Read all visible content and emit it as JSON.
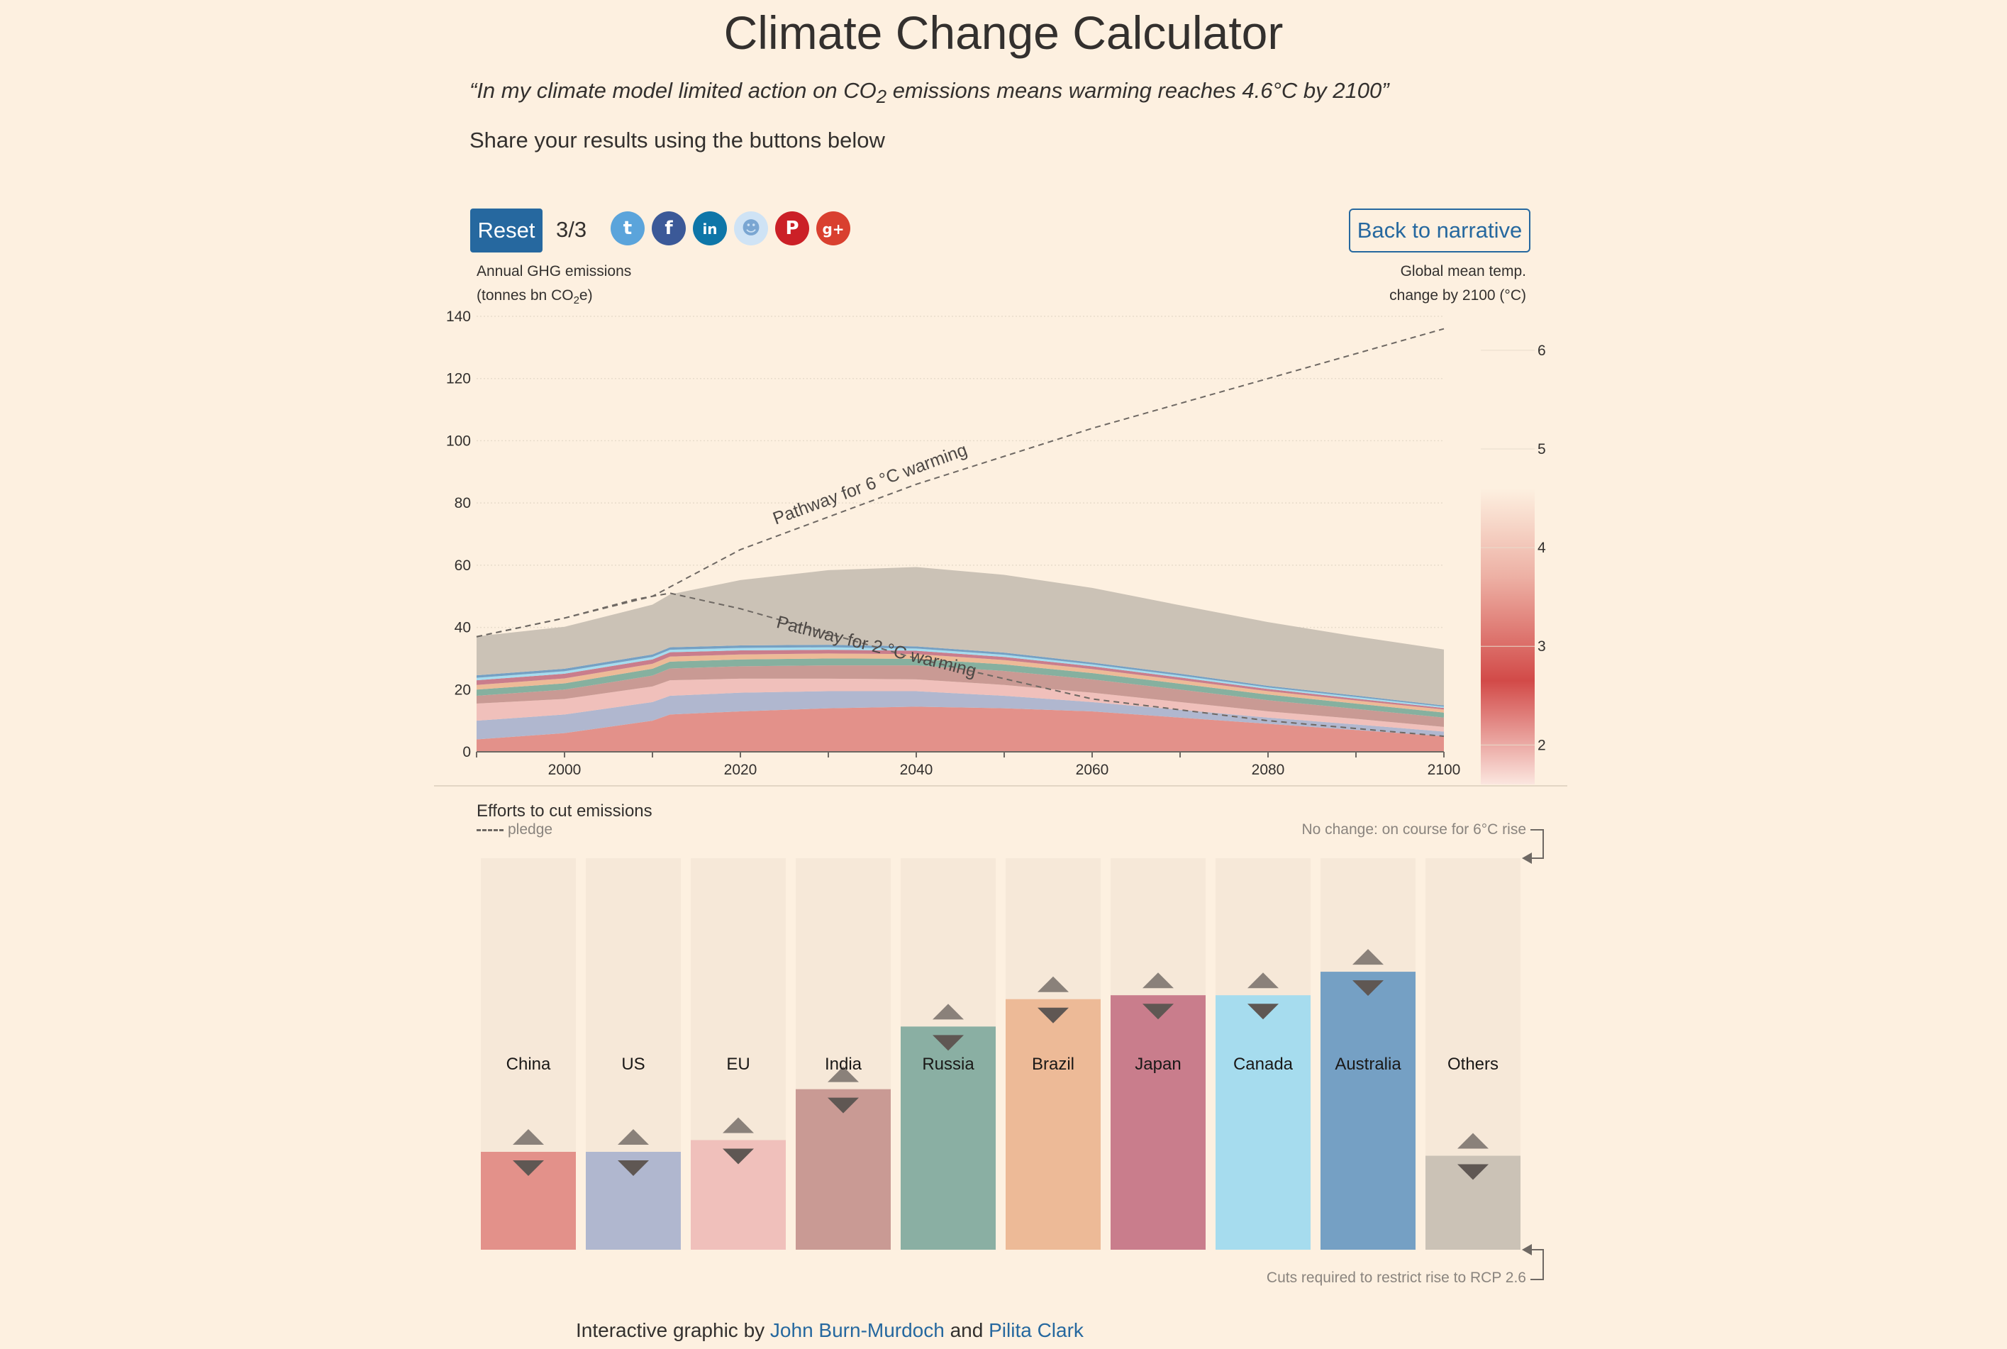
{
  "header": {
    "title": "Climate Change Calculator",
    "quote_pre": "“In my climate model limited action on CO",
    "quote_sub": "2",
    "quote_post": " emissions means warming reaches 4.6°C by 2100”",
    "share_text": "Share your results using the buttons below"
  },
  "toolbar": {
    "reset_label": "Reset",
    "step_counter": "3/3",
    "back_label": "Back to narrative",
    "social": [
      {
        "name": "twitter",
        "color": "#5ba4db",
        "glyph": "t"
      },
      {
        "name": "facebook",
        "color": "#3b5998",
        "glyph": "f"
      },
      {
        "name": "linkedin",
        "color": "#0e76a8",
        "glyph": "in"
      },
      {
        "name": "reddit",
        "color": "#cfe3f5",
        "glyph": "☻"
      },
      {
        "name": "pinterest",
        "color": "#cb2027",
        "glyph": "P"
      },
      {
        "name": "googleplus",
        "color": "#d9402f",
        "glyph": "g+"
      }
    ]
  },
  "chart_labels": {
    "left_axis_line1": "Annual GHG emissions",
    "left_axis_line2_pre": "(tonnes bn CO",
    "left_axis_line2_sub": "2",
    "left_axis_line2_post": "e)",
    "right_axis_line1": "Global mean temp.",
    "right_axis_line2": "change by 2100 (°C)",
    "pathway_6": "Pathway for 6 °C warming",
    "pathway_2": "Pathway for 2 °C warming"
  },
  "chart_data": {
    "type": "area",
    "stacked": true,
    "x": [
      1990,
      2000,
      2010,
      2012,
      2020,
      2030,
      2040,
      2050,
      2060,
      2070,
      2080,
      2090,
      2100
    ],
    "xlim": [
      1990,
      2100
    ],
    "x_ticks": [
      2000,
      2020,
      2040,
      2060,
      2080,
      2100
    ],
    "ylim": [
      0,
      140
    ],
    "y_ticks": [
      0,
      20,
      40,
      60,
      80,
      100,
      120,
      140
    ],
    "grid": true,
    "series": [
      {
        "name": "China",
        "color": "#e3918a",
        "values": [
          4,
          6,
          10,
          12,
          13,
          14,
          14.5,
          14,
          13,
          11,
          9,
          7,
          5
        ]
      },
      {
        "name": "US",
        "color": "#b0b7cf",
        "values": [
          6,
          6,
          6,
          6,
          6,
          5.5,
          5,
          4,
          3,
          2.5,
          2,
          1.8,
          1.5
        ]
      },
      {
        "name": "EU",
        "color": "#f0c0bb",
        "values": [
          5.5,
          5,
          5,
          5,
          4.5,
          4,
          3.8,
          3.5,
          3,
          2.5,
          2,
          1.8,
          1.5
        ]
      },
      {
        "name": "India",
        "color": "#c99a94",
        "values": [
          2.5,
          3,
          3.5,
          3.8,
          4,
          4.3,
          4.5,
          4.5,
          4.3,
          4,
          3.6,
          3.2,
          3
        ]
      },
      {
        "name": "Russia",
        "color": "#86b09f",
        "values": [
          2,
          2,
          2.2,
          2.2,
          2.2,
          2.2,
          2.1,
          2.1,
          2,
          1.9,
          1.8,
          1.7,
          1.6
        ]
      },
      {
        "name": "Brazil",
        "color": "#edba97",
        "values": [
          1.5,
          1.6,
          1.6,
          1.6,
          1.6,
          1.6,
          1.5,
          1.4,
          1.3,
          1.2,
          1.1,
          1,
          1
        ]
      },
      {
        "name": "Japan",
        "color": "#c97d8c",
        "values": [
          1.5,
          1.5,
          1.4,
          1.4,
          1.3,
          1.2,
          1.1,
          1,
          0.9,
          0.8,
          0.7,
          0.6,
          0.5
        ]
      },
      {
        "name": "Canada",
        "color": "#a6dcee",
        "values": [
          0.8,
          0.8,
          0.8,
          0.8,
          0.8,
          0.8,
          0.7,
          0.7,
          0.6,
          0.6,
          0.5,
          0.5,
          0.4
        ]
      },
      {
        "name": "Australia",
        "color": "#75a0c4",
        "values": [
          0.8,
          0.8,
          0.8,
          0.8,
          0.8,
          0.8,
          0.7,
          0.7,
          0.6,
          0.6,
          0.5,
          0.5,
          0.4
        ]
      },
      {
        "name": "Others",
        "color": "#cbc2b6",
        "values": [
          12.5,
          13.5,
          16,
          17,
          21,
          24,
          25.5,
          25,
          24,
          22,
          20.5,
          19,
          18
        ]
      }
    ],
    "pathways": [
      {
        "label": "Pathway for 6 °C warming",
        "x": [
          1990,
          2000,
          2010,
          2020,
          2040,
          2060,
          2080,
          2100
        ],
        "y": [
          37,
          43,
          50,
          65,
          86,
          104,
          120,
          136
        ]
      },
      {
        "label": "Pathway for 2 °C warming",
        "x": [
          1990,
          2000,
          2008,
          2012,
          2020,
          2040,
          2060,
          2080,
          2100
        ],
        "y": [
          37,
          43,
          49,
          51,
          46,
          30,
          17,
          10,
          5
        ]
      }
    ],
    "temp_scale": {
      "ylim": [
        1.6,
        6.2
      ],
      "ticks": [
        2,
        3,
        4,
        5,
        6
      ],
      "current": 4.6
    }
  },
  "efforts": {
    "title": "Efforts to cut emissions",
    "pledge_label": "pledge",
    "note_top": "No change: on course for 6°C rise",
    "note_bottom": "Cuts required to restrict rise to RCP 2.6",
    "bars": [
      {
        "name": "China",
        "color": "#e3918a",
        "level": 0.25
      },
      {
        "name": "US",
        "color": "#b0b7cf",
        "level": 0.25
      },
      {
        "name": "EU",
        "color": "#f0c0bb",
        "level": 0.28
      },
      {
        "name": "India",
        "color": "#c99a94",
        "level": 0.41
      },
      {
        "name": "Russia",
        "color": "#8aafa3",
        "level": 0.57
      },
      {
        "name": "Brazil",
        "color": "#edba97",
        "level": 0.64
      },
      {
        "name": "Japan",
        "color": "#c97d8c",
        "level": 0.65
      },
      {
        "name": "Canada",
        "color": "#a6dcee",
        "level": 0.65
      },
      {
        "name": "Australia",
        "color": "#75a0c4",
        "level": 0.71
      },
      {
        "name": "Others",
        "color": "#cbc2b6",
        "level": 0.24
      }
    ]
  },
  "footer": {
    "prefix": "Interactive graphic by ",
    "author1": "John Burn-Murdoch",
    "joiner": " and ",
    "author2": "Pilita Clark"
  }
}
